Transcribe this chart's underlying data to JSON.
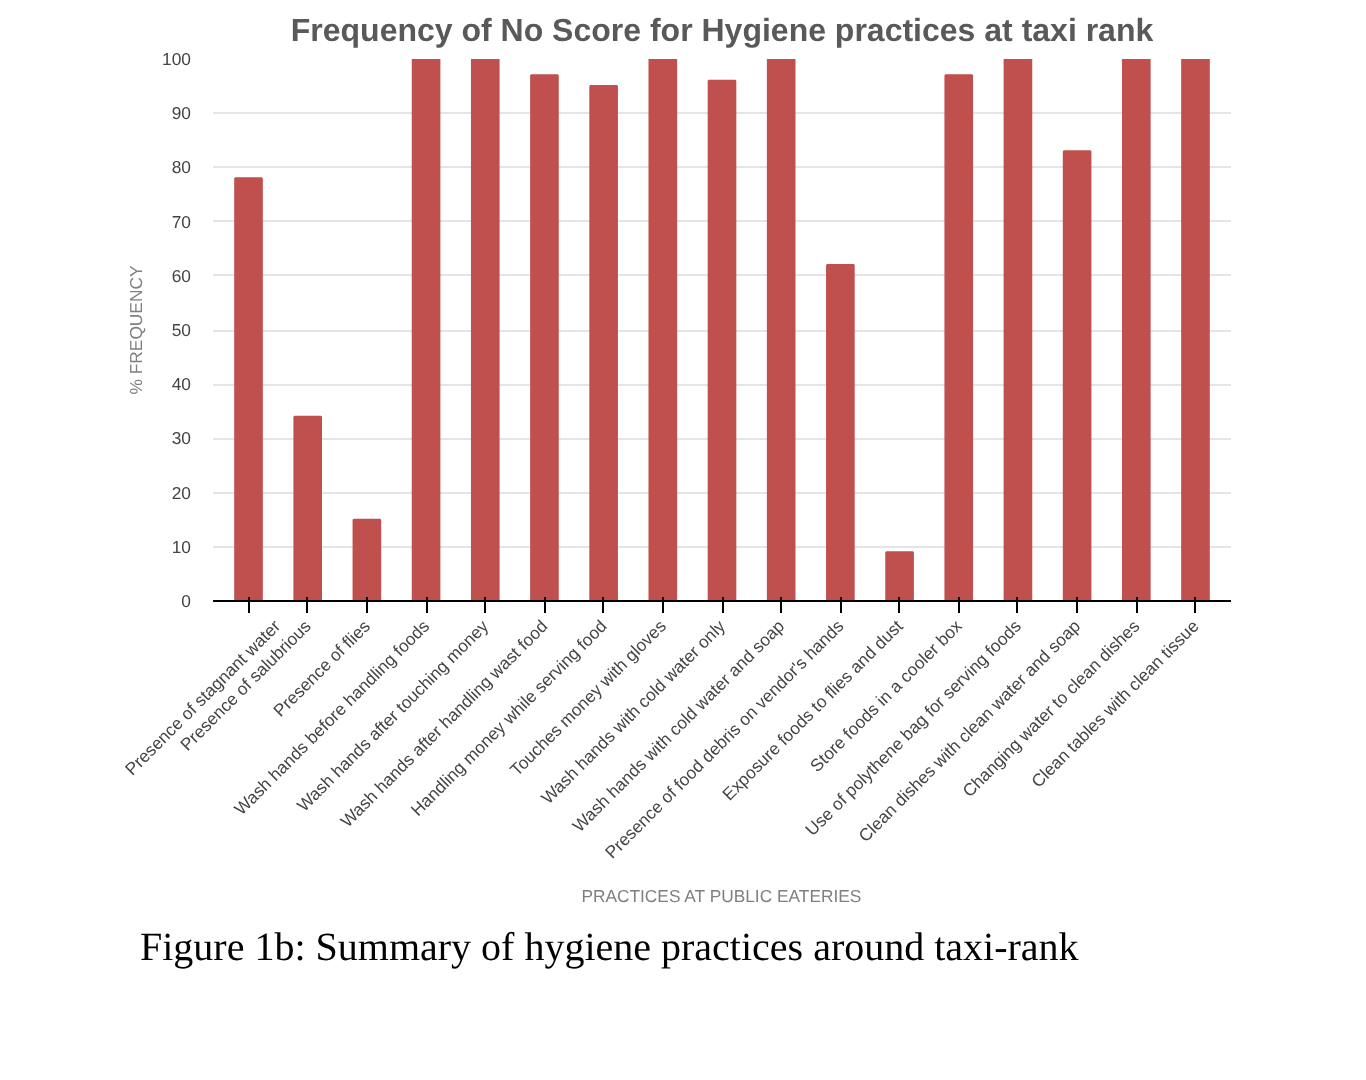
{
  "chart_data": {
    "type": "bar",
    "title": "Frequency of No Score for Hygiene practices at taxi rank",
    "xlabel": "PRACTICES AT PUBLIC EATERIES",
    "ylabel": "% FREQUENCY",
    "categories": [
      "Presence of stagnant water",
      "Presence of salubrious",
      "Presence of flies",
      "Wash hands before handling foods",
      "Wash hands after touching money",
      "Wash hands after handling wast food",
      "Handling money while serving food",
      "Touches money with gloves",
      "Wash hands with cold water only",
      "Wash hands with cold water and soap",
      "Presence of food debris on vendor's hands",
      "Exposure foods to flies and dust",
      "Store foods in a cooler box",
      "Use of polythene bag for serving foods",
      "Clean dishes with clean water and soap",
      "Changing water to clean dishes",
      "Clean tables with clean tissue"
    ],
    "values": [
      78,
      34,
      15,
      100,
      100,
      97,
      95,
      100,
      96,
      100,
      62,
      9,
      97,
      100,
      83,
      100,
      100
    ],
    "color": "#c0504d",
    "ylim": [
      0,
      100
    ],
    "yticks": [
      0,
      10,
      20,
      30,
      40,
      50,
      60,
      70,
      80,
      90,
      100
    ],
    "grid": "y",
    "annotations": [
      "Figure 1b: Summary of hygiene practices around taxi-rank"
    ]
  }
}
